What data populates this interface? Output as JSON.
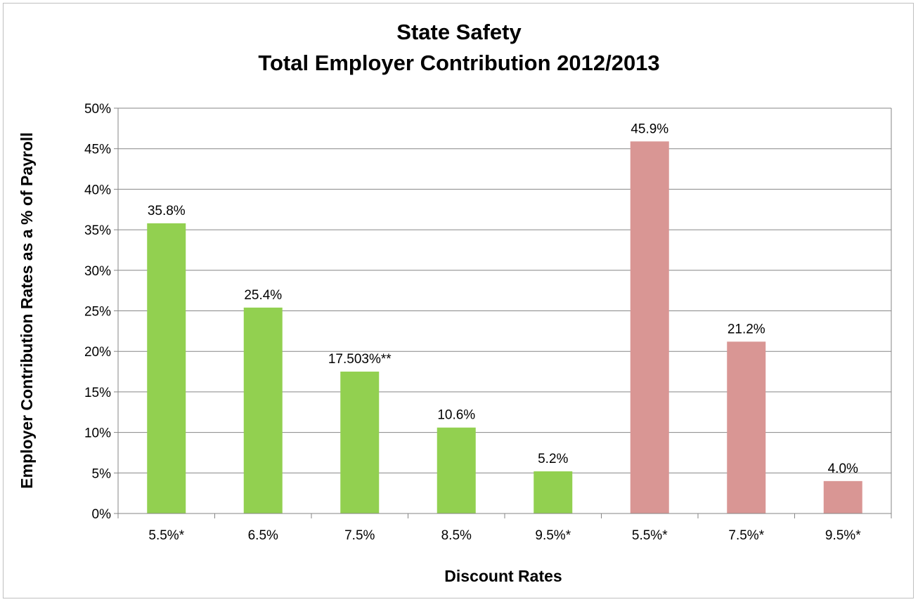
{
  "chart_data": {
    "type": "bar",
    "title_line1": "State Safety",
    "title_line2": "Total Employer Contribution  2012/2013",
    "xlabel": "Discount Rates",
    "ylabel": "Employer Contribution Rates as a % of Payroll",
    "ylim": [
      0,
      50
    ],
    "ytick_step": 5,
    "yticks": [
      "0%",
      "5%",
      "10%",
      "15%",
      "20%",
      "25%",
      "30%",
      "35%",
      "40%",
      "45%",
      "50%"
    ],
    "grid": true,
    "legend": "none",
    "categories": [
      "5.5%*",
      "6.5%",
      "7.5%",
      "8.5%",
      "9.5%*",
      "5.5%*",
      "7.5%*",
      "9.5%*"
    ],
    "values": [
      35.8,
      25.4,
      17.503,
      10.6,
      5.2,
      45.9,
      21.2,
      4.0
    ],
    "data_labels": [
      "35.8%",
      "25.4%",
      "17.503%**",
      "10.6%",
      "5.2%",
      "45.9%",
      "21.2%",
      "4.0%"
    ],
    "colors": [
      "#92d050",
      "#92d050",
      "#92d050",
      "#92d050",
      "#92d050",
      "#d99694",
      "#d99694",
      "#d99694"
    ]
  }
}
